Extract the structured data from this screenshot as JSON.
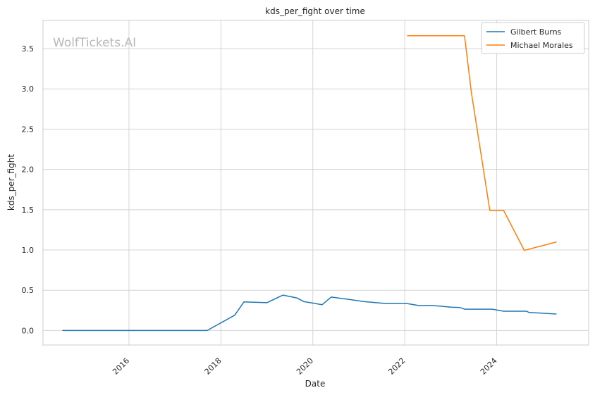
{
  "chart_data": {
    "type": "line",
    "title": "kds_per_fight over time",
    "xlabel": "Date",
    "ylabel": "kds_per_fight",
    "watermark": "WolfTickets.AI",
    "xlim": [
      2014.13,
      2026.0
    ],
    "ylim": [
      -0.18,
      3.85
    ],
    "xticks": [
      2016,
      2018,
      2020,
      2022,
      2024
    ],
    "xtick_labels": [
      "2016",
      "2018",
      "2020",
      "2022",
      "2024"
    ],
    "yticks": [
      0.0,
      0.5,
      1.0,
      1.5,
      2.0,
      2.5,
      3.0,
      3.5
    ],
    "ytick_labels": [
      "0.0",
      "0.5",
      "1.0",
      "1.5",
      "2.0",
      "2.5",
      "3.0",
      "3.5"
    ],
    "grid": true,
    "legend_position": "top-right",
    "series": [
      {
        "name": "Gilbert Burns",
        "color": "#1f77b4",
        "points": [
          [
            2014.55,
            0.0
          ],
          [
            2015.2,
            0.0
          ],
          [
            2016.0,
            0.0
          ],
          [
            2017.0,
            0.0
          ],
          [
            2017.7,
            0.0
          ],
          [
            2018.3,
            0.19
          ],
          [
            2018.5,
            0.355
          ],
          [
            2019.0,
            0.345
          ],
          [
            2019.35,
            0.44
          ],
          [
            2019.65,
            0.405
          ],
          [
            2019.8,
            0.36
          ],
          [
            2020.2,
            0.32
          ],
          [
            2020.4,
            0.415
          ],
          [
            2020.8,
            0.385
          ],
          [
            2021.1,
            0.36
          ],
          [
            2021.6,
            0.335
          ],
          [
            2022.05,
            0.335
          ],
          [
            2022.3,
            0.31
          ],
          [
            2022.6,
            0.31
          ],
          [
            2023.0,
            0.29
          ],
          [
            2023.2,
            0.285
          ],
          [
            2023.3,
            0.265
          ],
          [
            2023.9,
            0.265
          ],
          [
            2024.15,
            0.24
          ],
          [
            2024.65,
            0.24
          ],
          [
            2024.7,
            0.225
          ],
          [
            2025.3,
            0.205
          ]
        ]
      },
      {
        "name": "Michael Morales",
        "color": "#ff7f0e",
        "points": [
          [
            2022.05,
            3.66
          ],
          [
            2022.6,
            3.66
          ],
          [
            2023.0,
            3.66
          ],
          [
            2023.3,
            3.66
          ],
          [
            2023.45,
            2.95
          ],
          [
            2023.85,
            1.49
          ],
          [
            2024.15,
            1.49
          ],
          [
            2024.6,
            0.995
          ],
          [
            2025.3,
            1.1
          ]
        ]
      }
    ]
  }
}
